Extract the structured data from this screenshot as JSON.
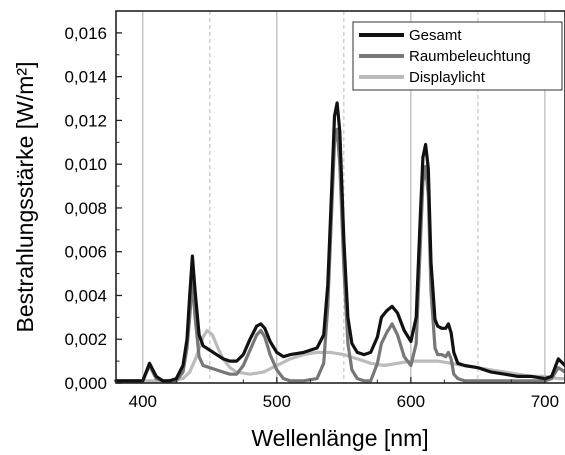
{
  "chart_data": {
    "type": "line",
    "title": "",
    "xlabel": "Wellenlänge [nm]",
    "ylabel": "Bestrahlungsstärke [W/m²]",
    "xlim": [
      380,
      715
    ],
    "ylim": [
      0,
      0.017
    ],
    "x_ticks": [
      400,
      500,
      600,
      700
    ],
    "x_tick_labels": [
      "400",
      "500",
      "600",
      "700"
    ],
    "y_ticks": [
      0,
      0.002,
      0.004,
      0.006,
      0.008,
      0.01,
      0.012,
      0.014,
      0.016
    ],
    "y_tick_labels": [
      "0,000",
      "0,002",
      "0,004",
      "0,006",
      "0,008",
      "0,010",
      "0,012",
      "0,014",
      "0,016"
    ],
    "grid": {
      "solid_x": [
        400,
        500,
        600,
        700
      ],
      "dashed_x": [
        450,
        550,
        650
      ]
    },
    "legend_position": "top-right",
    "series": [
      {
        "name": "Gesamt",
        "color": "#111111",
        "x": [
          380,
          395,
          400,
          405,
          410,
          415,
          420,
          425,
          430,
          433,
          435,
          437,
          439,
          442,
          445,
          450,
          455,
          460,
          465,
          470,
          475,
          480,
          485,
          488,
          491,
          495,
          500,
          505,
          510,
          520,
          530,
          535,
          538,
          541,
          543,
          545,
          547,
          550,
          553,
          556,
          560,
          565,
          570,
          575,
          578,
          582,
          586,
          590,
          595,
          600,
          604,
          607,
          609,
          611,
          613,
          615,
          618,
          620,
          623,
          626,
          628,
          630,
          632,
          635,
          640,
          650,
          660,
          670,
          680,
          690,
          700,
          705,
          710,
          715
        ],
        "y": [
          0.0001,
          0.0001,
          0.0001,
          0.0009,
          0.0003,
          0.0001,
          0.0001,
          0.0002,
          0.0008,
          0.002,
          0.004,
          0.0058,
          0.0042,
          0.0022,
          0.0017,
          0.0015,
          0.0013,
          0.0011,
          0.001,
          0.001,
          0.0013,
          0.002,
          0.0026,
          0.0027,
          0.0025,
          0.0019,
          0.0014,
          0.0012,
          0.0013,
          0.0014,
          0.0016,
          0.0022,
          0.0045,
          0.009,
          0.0122,
          0.0128,
          0.0115,
          0.0065,
          0.003,
          0.0018,
          0.0014,
          0.0013,
          0.0014,
          0.0021,
          0.003,
          0.0033,
          0.0035,
          0.0032,
          0.0024,
          0.0019,
          0.003,
          0.0075,
          0.0103,
          0.0109,
          0.0098,
          0.0055,
          0.0029,
          0.0026,
          0.0025,
          0.0025,
          0.0027,
          0.0023,
          0.0014,
          0.0009,
          0.0008,
          0.0007,
          0.0005,
          0.0004,
          0.0003,
          0.0003,
          0.0002,
          0.0003,
          0.0011,
          0.0008
        ]
      },
      {
        "name": "Raumbeleuchtung",
        "color": "#777777",
        "x": [
          380,
          395,
          400,
          405,
          410,
          415,
          420,
          425,
          430,
          433,
          435,
          437,
          439,
          442,
          445,
          450,
          455,
          460,
          465,
          470,
          475,
          480,
          485,
          488,
          491,
          495,
          500,
          505,
          510,
          520,
          530,
          535,
          538,
          541,
          543,
          545,
          547,
          550,
          553,
          556,
          560,
          565,
          570,
          575,
          578,
          582,
          586,
          590,
          595,
          600,
          604,
          607,
          609,
          611,
          613,
          615,
          618,
          620,
          623,
          626,
          628,
          630,
          632,
          635,
          640,
          650,
          660,
          670,
          680,
          690,
          700,
          705,
          710,
          715
        ],
        "y": [
          0.0001,
          0.0001,
          0.0001,
          0.0008,
          0.0002,
          0.0001,
          0.0001,
          0.0001,
          0.0005,
          0.0016,
          0.003,
          0.0047,
          0.003,
          0.0012,
          0.0008,
          0.0007,
          0.0006,
          0.0005,
          0.0004,
          0.0004,
          0.0008,
          0.0015,
          0.0022,
          0.0024,
          0.0021,
          0.0013,
          0.0006,
          0.0002,
          0.0001,
          0.0001,
          0.0002,
          0.0009,
          0.0035,
          0.008,
          0.011,
          0.0116,
          0.01,
          0.0052,
          0.0018,
          0.0006,
          0.0002,
          0.0001,
          0.0001,
          0.0009,
          0.0018,
          0.0023,
          0.0027,
          0.0022,
          0.0012,
          0.0008,
          0.0018,
          0.0062,
          0.0092,
          0.0099,
          0.0086,
          0.0042,
          0.0016,
          0.0013,
          0.0013,
          0.0012,
          0.0014,
          0.0011,
          0.0004,
          0.0002,
          0.0001,
          0.0001,
          0.0001,
          0.0001,
          0.0001,
          0.0001,
          0.0001,
          0.0002,
          0.0007,
          0.0005
        ]
      },
      {
        "name": "Displaylicht",
        "color": "#bbbbbb",
        "x": [
          380,
          420,
          430,
          435,
          440,
          445,
          448,
          452,
          456,
          460,
          465,
          470,
          480,
          490,
          500,
          510,
          520,
          530,
          540,
          550,
          560,
          570,
          580,
          590,
          600,
          610,
          620,
          630,
          640,
          650,
          660,
          670,
          680,
          690,
          700,
          710,
          715
        ],
        "y": [
          0.0001,
          0.0001,
          0.0002,
          0.0005,
          0.0012,
          0.0021,
          0.0024,
          0.0022,
          0.0016,
          0.0011,
          0.0007,
          0.0005,
          0.0004,
          0.0005,
          0.0008,
          0.0011,
          0.0013,
          0.0014,
          0.0014,
          0.0013,
          0.0011,
          0.0009,
          0.0008,
          0.0009,
          0.001,
          0.001,
          0.001,
          0.0009,
          0.0008,
          0.0007,
          0.0006,
          0.0005,
          0.0004,
          0.0003,
          0.0003,
          0.0002,
          0.0002
        ]
      }
    ]
  }
}
